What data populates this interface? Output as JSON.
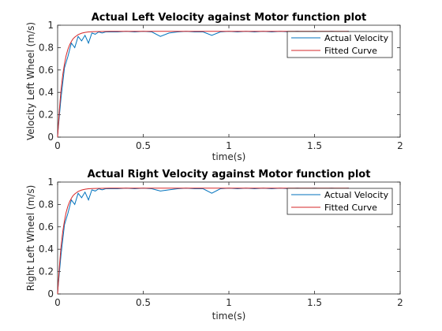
{
  "chart_data": [
    {
      "type": "line",
      "title": "Actual Left Velocity against Motor function plot",
      "xlabel": "time(s)",
      "ylabel": "Velocity Left Wheel (m/s)",
      "xlim": [
        0,
        2
      ],
      "ylim": [
        0,
        1
      ],
      "xticks": [
        "0",
        "0.5",
        "1",
        "1.5",
        "2"
      ],
      "yticks": [
        "0",
        "0.2",
        "0.4",
        "0.6",
        "0.8",
        "1"
      ],
      "grid": false,
      "legend_position": "top-right",
      "series": [
        {
          "name": "Actual Velocity",
          "color": "#0072BD",
          "x": [
            0,
            0.02,
            0.04,
            0.06,
            0.08,
            0.1,
            0.12,
            0.14,
            0.16,
            0.18,
            0.2,
            0.22,
            0.24,
            0.26,
            0.28,
            0.3,
            0.35,
            0.4,
            0.45,
            0.5,
            0.55,
            0.6,
            0.65,
            0.7,
            0.75,
            0.8,
            0.85,
            0.9,
            0.95,
            1.0,
            1.05,
            1.1,
            1.15,
            1.2,
            1.25,
            1.3,
            1.35,
            1.4,
            1.45,
            1.5,
            1.55,
            1.6,
            1.65,
            1.7
          ],
          "y": [
            0.02,
            0.35,
            0.62,
            0.72,
            0.84,
            0.8,
            0.9,
            0.86,
            0.91,
            0.84,
            0.93,
            0.92,
            0.94,
            0.93,
            0.94,
            0.94,
            0.94,
            0.945,
            0.94,
            0.945,
            0.94,
            0.9,
            0.93,
            0.94,
            0.945,
            0.94,
            0.94,
            0.91,
            0.94,
            0.945,
            0.94,
            0.945,
            0.94,
            0.945,
            0.94,
            0.945,
            0.94,
            0.945,
            0.94,
            0.945,
            0.94,
            0.945,
            0.94,
            0.945
          ]
        },
        {
          "name": "Fitted Curve",
          "color": "#D62728",
          "x": [
            0,
            0.01,
            0.02,
            0.03,
            0.04,
            0.05,
            0.06,
            0.07,
            0.08,
            0.09,
            0.1,
            0.12,
            0.14,
            0.16,
            0.18,
            0.2,
            0.22,
            0.25,
            0.3,
            0.35,
            0.4,
            0.5,
            0.6,
            0.8,
            1.0,
            1.2,
            1.4,
            1.6,
            1.7
          ],
          "y": [
            0,
            0.242,
            0.422,
            0.556,
            0.655,
            0.729,
            0.784,
            0.825,
            0.855,
            0.878,
            0.894,
            0.916,
            0.929,
            0.936,
            0.94,
            0.942,
            0.943,
            0.944,
            0.945,
            0.945,
            0.945,
            0.945,
            0.945,
            0.945,
            0.945,
            0.945,
            0.945,
            0.945,
            0.945
          ]
        }
      ]
    },
    {
      "type": "line",
      "title": "Actual Right Velocity against Motor function plot",
      "xlabel": "time(s)",
      "ylabel": "Right Left Wheel (m/s)",
      "xlim": [
        0,
        2
      ],
      "ylim": [
        0,
        1
      ],
      "xticks": [
        "0",
        "0.5",
        "1",
        "1.5",
        "2"
      ],
      "yticks": [
        "0",
        "0.2",
        "0.4",
        "0.6",
        "0.8",
        "1"
      ],
      "grid": false,
      "legend_position": "top-right",
      "series": [
        {
          "name": "Actual Velocity",
          "color": "#0072BD",
          "x": [
            0,
            0.02,
            0.04,
            0.06,
            0.08,
            0.1,
            0.12,
            0.14,
            0.16,
            0.18,
            0.2,
            0.22,
            0.24,
            0.26,
            0.28,
            0.3,
            0.35,
            0.4,
            0.45,
            0.5,
            0.55,
            0.6,
            0.65,
            0.7,
            0.75,
            0.8,
            0.85,
            0.9,
            0.95,
            1.0,
            1.05,
            1.1,
            1.15,
            1.2,
            1.25,
            1.3,
            1.35,
            1.4,
            1.45,
            1.5,
            1.55,
            1.6,
            1.65,
            1.7
          ],
          "y": [
            0.02,
            0.35,
            0.62,
            0.72,
            0.84,
            0.8,
            0.9,
            0.86,
            0.91,
            0.84,
            0.93,
            0.92,
            0.94,
            0.93,
            0.94,
            0.94,
            0.94,
            0.945,
            0.94,
            0.945,
            0.94,
            0.92,
            0.93,
            0.94,
            0.945,
            0.94,
            0.94,
            0.9,
            0.94,
            0.945,
            0.94,
            0.945,
            0.94,
            0.945,
            0.94,
            0.945,
            0.94,
            0.945,
            0.94,
            0.945,
            0.94,
            0.945,
            0.94,
            0.945
          ]
        },
        {
          "name": "Fitted Curve",
          "color": "#D62728",
          "x": [
            0,
            0.01,
            0.02,
            0.03,
            0.04,
            0.05,
            0.06,
            0.07,
            0.08,
            0.09,
            0.1,
            0.12,
            0.14,
            0.16,
            0.18,
            0.2,
            0.22,
            0.25,
            0.3,
            0.35,
            0.4,
            0.5,
            0.6,
            0.8,
            1.0,
            1.2,
            1.4,
            1.6,
            1.7
          ],
          "y": [
            0,
            0.242,
            0.422,
            0.556,
            0.655,
            0.729,
            0.784,
            0.825,
            0.855,
            0.878,
            0.894,
            0.916,
            0.929,
            0.936,
            0.94,
            0.942,
            0.943,
            0.944,
            0.945,
            0.945,
            0.945,
            0.945,
            0.945,
            0.945,
            0.945,
            0.945,
            0.945,
            0.945,
            0.945
          ]
        }
      ]
    }
  ]
}
